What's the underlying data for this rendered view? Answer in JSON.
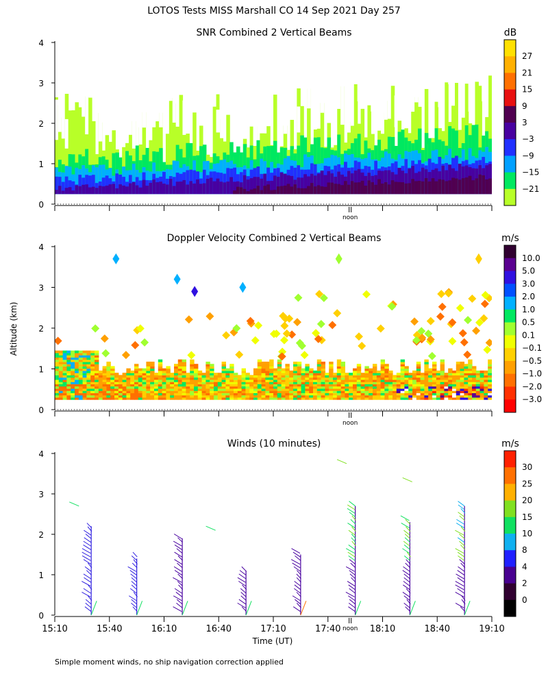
{
  "title": "LOTOS Tests MISS Marshall CO  14 Sep 2021 Day 257",
  "footnote": "Simple moment winds, no ship navigation correction applied",
  "ylabel": "Altitude (km)",
  "xlabel": "Time (UT)",
  "noon_label": "noon",
  "x_ticks": [
    "15:10",
    "15:40",
    "16:10",
    "16:40",
    "17:10",
    "17:40",
    "18:10",
    "18:40",
    "19:10"
  ],
  "y_ticks": [
    "0",
    "1",
    "2",
    "3",
    "4"
  ],
  "chart_data": [
    {
      "type": "heatmap",
      "title": "SNR Combined 2 Vertical Beams",
      "ylim": [
        0,
        4
      ],
      "colorbar": {
        "unit": "dB",
        "labels": [
          "27",
          "21",
          "15",
          "9",
          "3",
          "−3",
          "−9",
          "−15",
          "−21"
        ],
        "colors": [
          "#ffe000",
          "#ffb000",
          "#ff7000",
          "#e81010",
          "#500050",
          "#4800a0",
          "#2030ff",
          "#00a0ff",
          "#00e860",
          "#b8ff28"
        ]
      },
      "description_layers": [
        {
          "level": "-21",
          "color": "#b8ff28"
        },
        {
          "level": "-15",
          "color": "#00e860"
        },
        {
          "level": "-9",
          "color": "#00b0ff"
        },
        {
          "level": "-3",
          "color": "#2030ff"
        },
        {
          "level": "3",
          "color": "#4800a0"
        },
        {
          "level": "9",
          "color": "#500050"
        }
      ]
    },
    {
      "type": "heatmap",
      "title": "Doppler Velocity Combined 2 Vertical Beams",
      "ylim": [
        0,
        4
      ],
      "colorbar": {
        "unit": "m/s",
        "labels": [
          "10.0",
          "5.0",
          "3.0",
          "2.0",
          "1.0",
          "0.5",
          "0.1",
          "−0.1",
          "−0.5",
          "−1.0",
          "−2.0",
          "−3.0"
        ],
        "colors": [
          "#300030",
          "#5a0090",
          "#3010e0",
          "#0050ff",
          "#00b0ff",
          "#00e860",
          "#a0ff30",
          "#f0ff00",
          "#ffd000",
          "#ffa000",
          "#ff7000",
          "#ff3000",
          "#ff0000"
        ]
      }
    },
    {
      "type": "scatter",
      "title": "Winds (10 minutes)",
      "ylim": [
        0,
        4
      ],
      "colorbar": {
        "unit": "m/s",
        "labels": [
          "30",
          "25",
          "20",
          "15",
          "10",
          "8",
          "4",
          "2",
          "0"
        ],
        "colors": [
          "#ff2000",
          "#ff7000",
          "#ffb000",
          "#80e020",
          "#10e060",
          "#10b0f0",
          "#2020ff",
          "#480090",
          "#300030",
          "#000000"
        ]
      },
      "profiles": [
        {
          "time": "15:30",
          "top": 2.2,
          "color": "#3020e0"
        },
        {
          "time": "15:55",
          "top": 1.4,
          "color": "#3020e0"
        },
        {
          "time": "16:20",
          "top": 1.9,
          "color": "#4800a0"
        },
        {
          "time": "16:55",
          "top": 1.1,
          "color": "#4800a0"
        },
        {
          "time": "17:25",
          "top": 1.5,
          "color": "#4800a0"
        },
        {
          "time": "17:55",
          "top": 2.7,
          "color": "#4800a0"
        },
        {
          "time": "18:25",
          "top": 2.3,
          "color": "#4800a0"
        },
        {
          "time": "18:55",
          "top": 2.7,
          "color": "#4800a0"
        }
      ]
    }
  ]
}
